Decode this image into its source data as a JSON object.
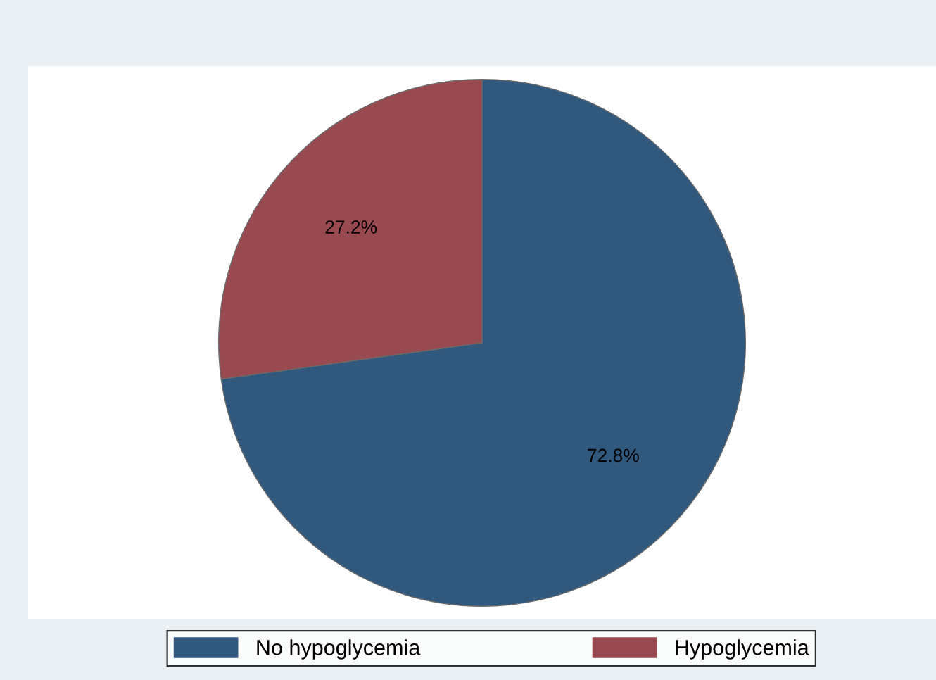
{
  "chart_data": {
    "type": "pie",
    "categories": [
      "No hypoglycemia",
      "Hypoglycemia"
    ],
    "values": [
      72.8,
      27.2
    ],
    "colors": [
      "#31587d",
      "#984a50"
    ],
    "value_labels": [
      "72.8%",
      "27.2%"
    ],
    "legend": "bottom"
  }
}
